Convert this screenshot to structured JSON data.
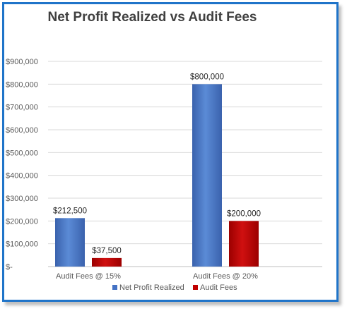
{
  "chart_data": {
    "type": "bar",
    "title": "Net Profit Realized vs Audit Fees",
    "categories": [
      "Audit Fees @ 15%",
      "Audit Fees @ 20%"
    ],
    "series": [
      {
        "name": "Net Profit Realized",
        "values": [
          212500,
          800000
        ],
        "labels": [
          "$212,500",
          "$800,000"
        ],
        "color": "#4472c4"
      },
      {
        "name": "Audit Fees",
        "values": [
          37500,
          200000
        ],
        "labels": [
          "$37,500",
          "$200,000"
        ],
        "color": "#c00000"
      }
    ],
    "ylim": [
      0,
      900000
    ],
    "yticks": [
      0,
      100000,
      200000,
      300000,
      400000,
      500000,
      600000,
      700000,
      800000,
      900000
    ],
    "ytick_labels": [
      "$-",
      "$100,000",
      "$200,000",
      "$300,000",
      "$400,000",
      "$500,000",
      "$600,000",
      "$700,000",
      "$800,000",
      "$900,000"
    ],
    "grid": true,
    "legend": "bottom"
  }
}
